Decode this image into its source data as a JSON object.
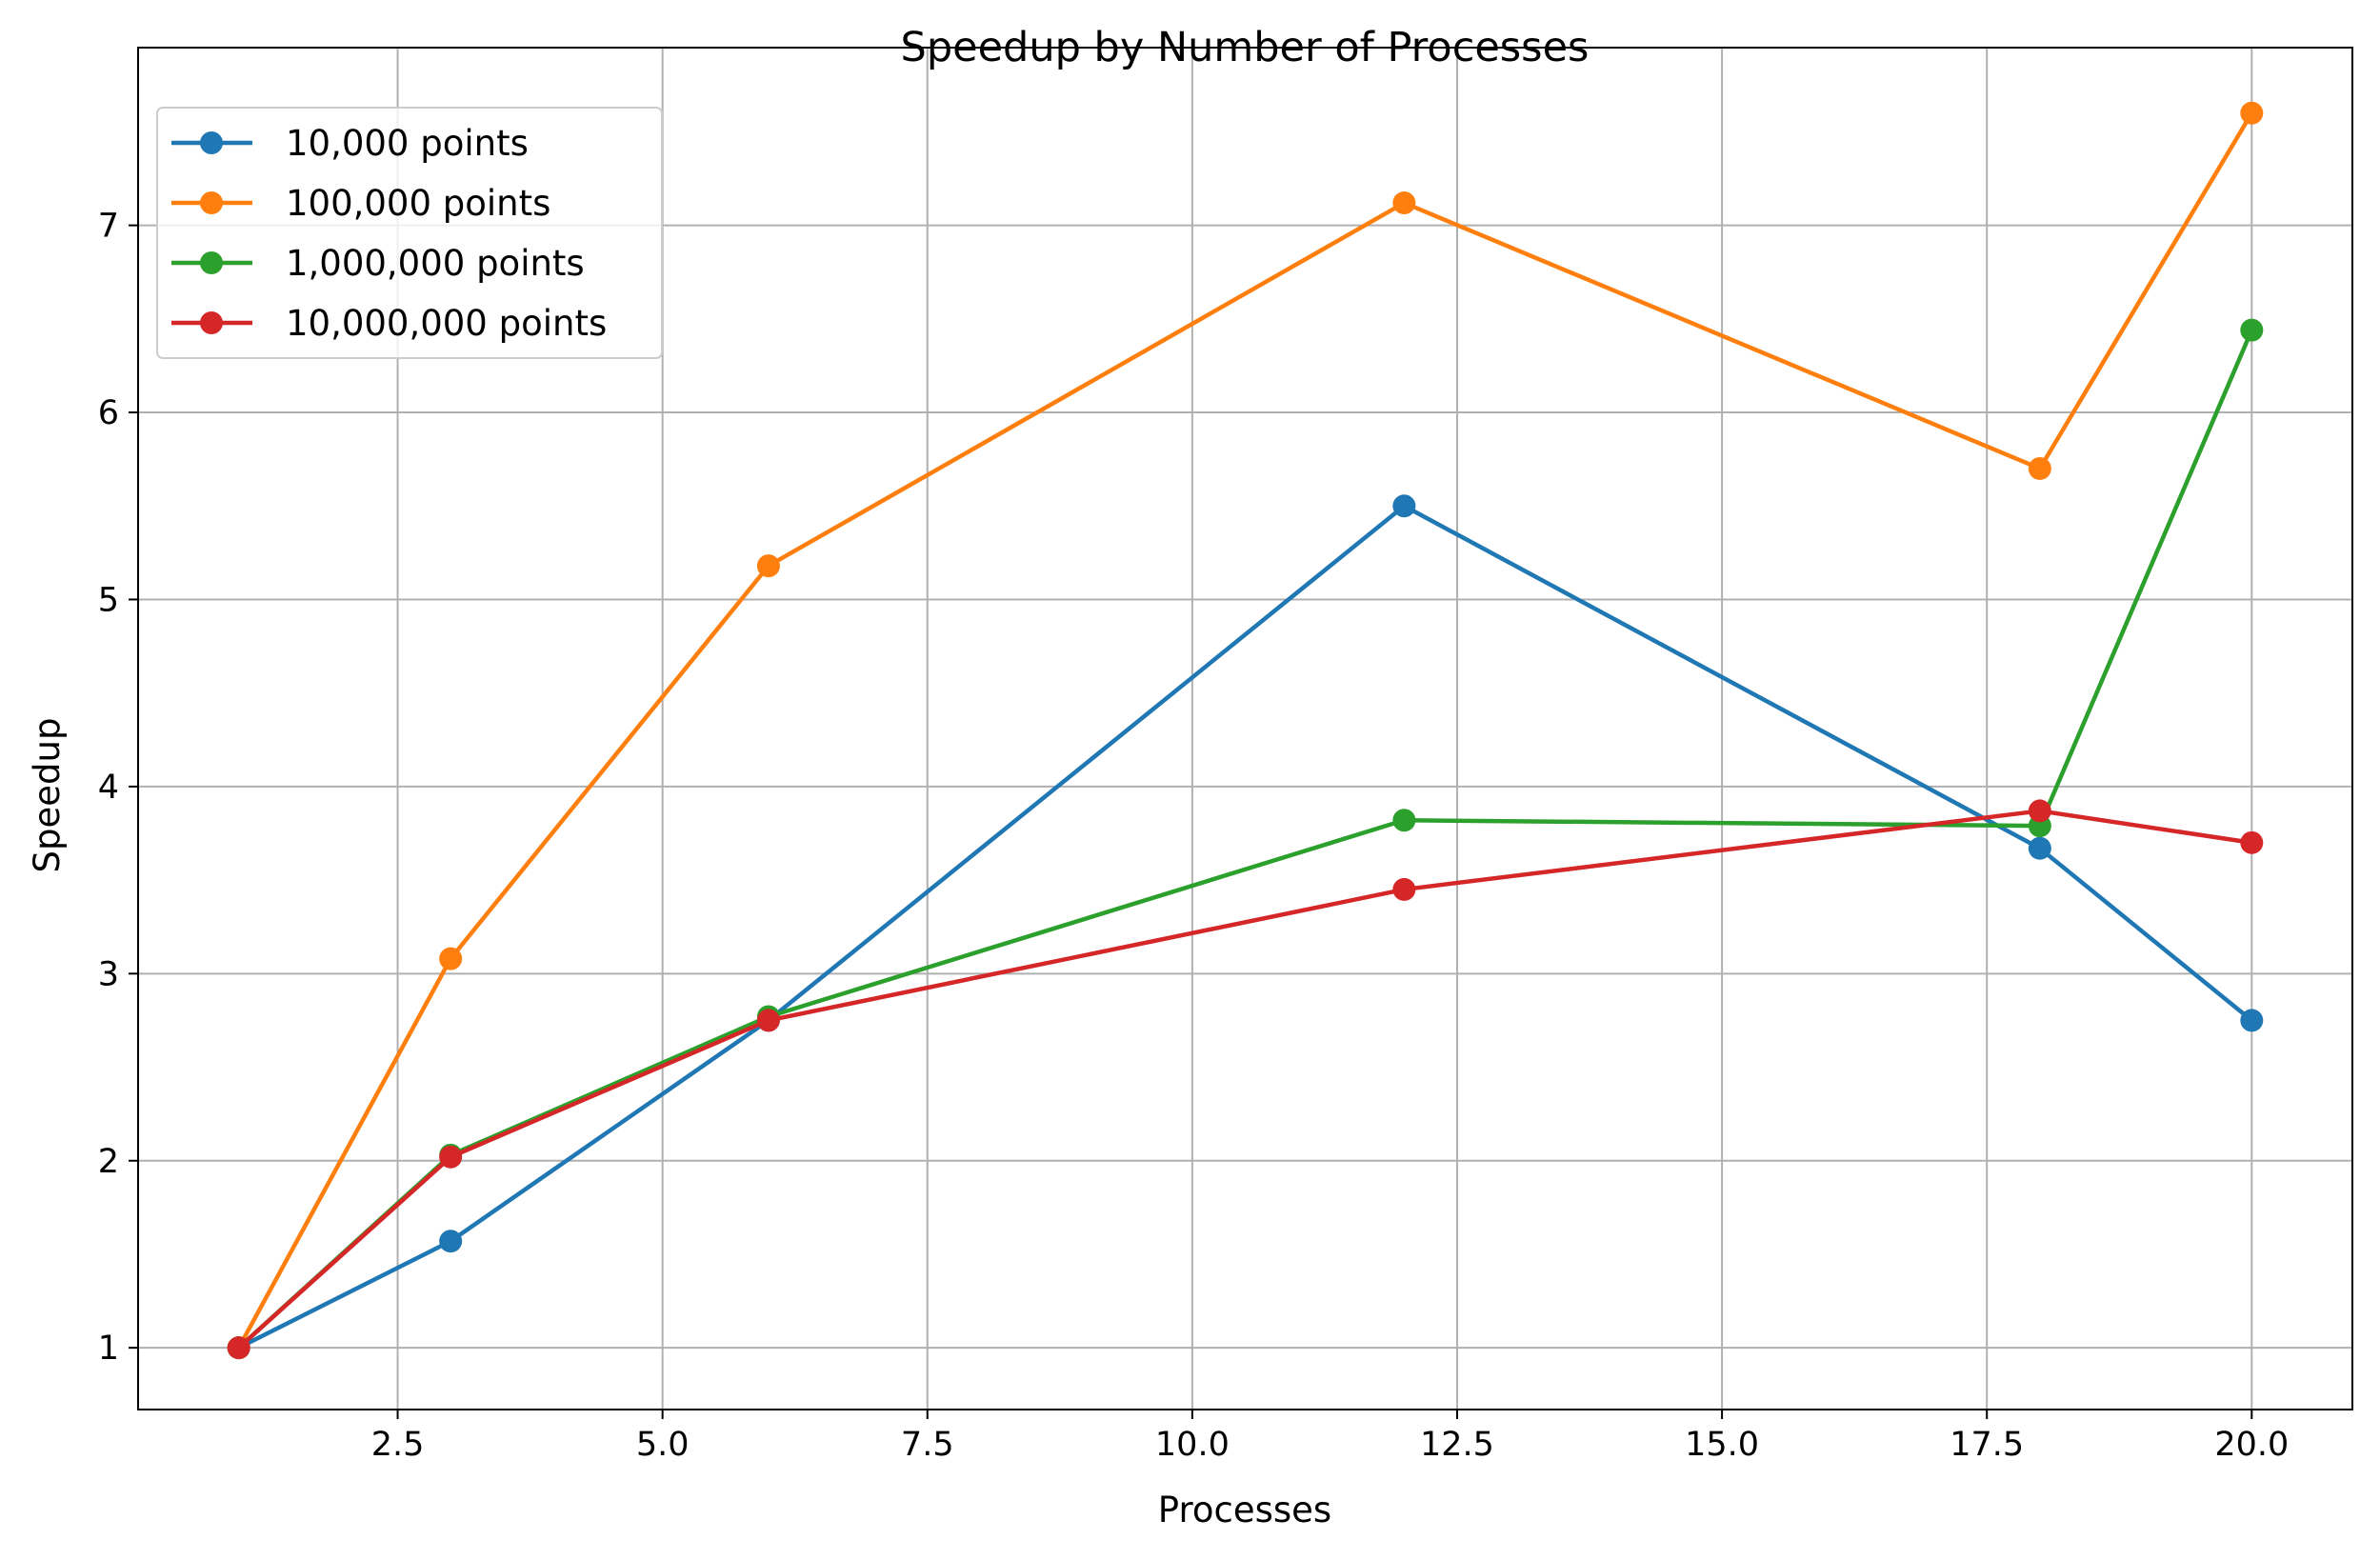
{
  "chart_data": {
    "type": "line",
    "title": "Speedup by Number of Processes",
    "xlabel": "Processes",
    "ylabel": "Speedup",
    "x": [
      1,
      3,
      6,
      12,
      18,
      20
    ],
    "xlim": [
      0.05,
      20.95
    ],
    "ylim": [
      0.67,
      7.95
    ],
    "xticks": [
      2.5,
      5.0,
      7.5,
      10.0,
      12.5,
      15.0,
      17.5,
      20.0
    ],
    "xtick_labels": [
      "2.5",
      "5.0",
      "7.5",
      "10.0",
      "12.5",
      "15.0",
      "17.5",
      "20.0"
    ],
    "yticks": [
      1,
      2,
      3,
      4,
      5,
      6,
      7
    ],
    "ytick_labels": [
      "1",
      "2",
      "3",
      "4",
      "5",
      "6",
      "7"
    ],
    "grid": true,
    "legend_position": "top-left",
    "series": [
      {
        "name": "10,000 points",
        "color": "#1f77b4",
        "values": [
          1.0,
          1.57,
          2.75,
          5.5,
          3.67,
          2.75
        ]
      },
      {
        "name": "100,000 points",
        "color": "#ff7f0e",
        "values": [
          1.0,
          3.08,
          5.18,
          7.12,
          5.7,
          7.6
        ]
      },
      {
        "name": "1,000,000 points",
        "color": "#2ca02c",
        "values": [
          1.0,
          2.03,
          2.77,
          3.82,
          3.79,
          6.44
        ]
      },
      {
        "name": "10,000,000 points",
        "color": "#d62728",
        "values": [
          1.0,
          2.02,
          2.75,
          3.45,
          3.87,
          3.7
        ]
      }
    ]
  }
}
